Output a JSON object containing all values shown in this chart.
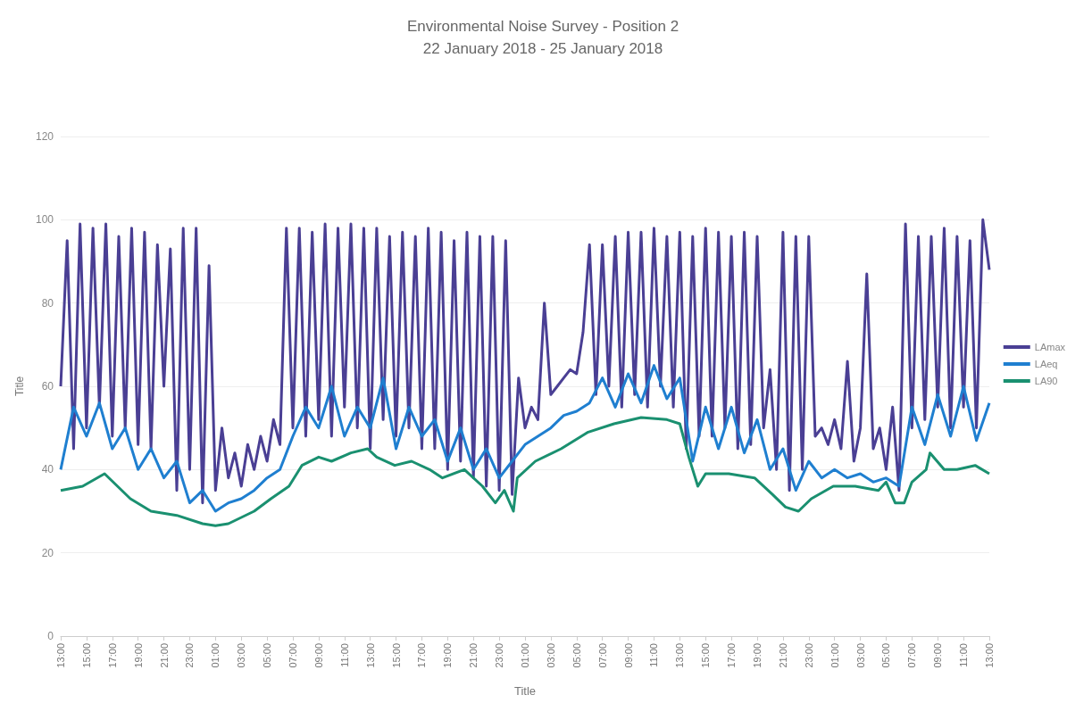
{
  "chart_data": {
    "type": "line",
    "title": "Environmental Noise Survey - Position 2",
    "subtitle": "22 January 2018 - 25 January 2018",
    "xlabel": "Title",
    "ylabel": "Title",
    "xlim": [
      "2018-01-22T13:00",
      "2018-01-25T13:00"
    ],
    "ylim": [
      0,
      120
    ],
    "yticks": [
      0,
      20,
      40,
      60,
      80,
      100,
      120
    ],
    "xticks": [
      {
        "value": "2018-01-22T13:00",
        "label": "13:00"
      },
      {
        "value": "2018-01-22T15:00",
        "label": "15:00"
      },
      {
        "value": "2018-01-22T17:00",
        "label": "17:00"
      },
      {
        "value": "2018-01-22T19:00",
        "label": "19:00"
      },
      {
        "value": "2018-01-22T21:00",
        "label": "21:00"
      },
      {
        "value": "2018-01-22T23:00",
        "label": "23:00"
      },
      {
        "value": "2018-01-23T01:00",
        "label": "01:00"
      },
      {
        "value": "2018-01-23T03:00",
        "label": "03:00"
      },
      {
        "value": "2018-01-23T05:00",
        "label": "05:00"
      },
      {
        "value": "2018-01-23T07:00",
        "label": "07:00"
      },
      {
        "value": "2018-01-23T09:00",
        "label": "09:00"
      },
      {
        "value": "2018-01-23T11:00",
        "label": "11:00"
      },
      {
        "value": "2018-01-23T13:00",
        "label": "13:00"
      },
      {
        "value": "2018-01-23T15:00",
        "label": "15:00"
      },
      {
        "value": "2018-01-23T17:00",
        "label": "17:00"
      },
      {
        "value": "2018-01-23T19:00",
        "label": "19:00"
      },
      {
        "value": "2018-01-23T21:00",
        "label": "21:00"
      },
      {
        "value": "2018-01-23T23:00",
        "label": "23:00"
      },
      {
        "value": "2018-01-24T01:00",
        "label": "01:00"
      },
      {
        "value": "2018-01-24T03:00",
        "label": "03:00"
      },
      {
        "value": "2018-01-24T05:00",
        "label": "05:00"
      },
      {
        "value": "2018-01-24T07:00",
        "label": "07:00"
      },
      {
        "value": "2018-01-24T09:00",
        "label": "09:00"
      },
      {
        "value": "2018-01-24T11:00",
        "label": "11:00"
      },
      {
        "value": "2018-01-24T13:00",
        "label": "13:00"
      },
      {
        "value": "2018-01-24T15:00",
        "label": "15:00"
      },
      {
        "value": "2018-01-24T17:00",
        "label": "17:00"
      },
      {
        "value": "2018-01-24T19:00",
        "label": "19:00"
      },
      {
        "value": "2018-01-24T21:00",
        "label": "21:00"
      },
      {
        "value": "2018-01-24T23:00",
        "label": "23:00"
      },
      {
        "value": "2018-01-25T01:00",
        "label": "01:00"
      },
      {
        "value": "2018-01-25T03:00",
        "label": "03:00"
      },
      {
        "value": "2018-01-25T05:00",
        "label": "05:00"
      },
      {
        "value": "2018-01-25T07:00",
        "label": "07:00"
      },
      {
        "value": "2018-01-25T09:00",
        "label": "09:00"
      },
      {
        "value": "2018-01-25T11:00",
        "label": "11:00"
      },
      {
        "value": "2018-01-25T13:00",
        "label": "13:00"
      }
    ],
    "grid": "y",
    "legend": "right",
    "marker": "none",
    "line_style": "solid",
    "series": [
      {
        "name": "LAmax",
        "color": "#4a3f94",
        "x": [
          "2018-01-22T13:00",
          "2018-01-22T13:30",
          "2018-01-22T14:00",
          "2018-01-22T14:30",
          "2018-01-22T15:00",
          "2018-01-22T15:30",
          "2018-01-22T16:00",
          "2018-01-22T16:30",
          "2018-01-22T17:00",
          "2018-01-22T17:30",
          "2018-01-22T18:00",
          "2018-01-22T18:30",
          "2018-01-22T19:00",
          "2018-01-22T19:30",
          "2018-01-22T20:00",
          "2018-01-22T20:30",
          "2018-01-22T21:00",
          "2018-01-22T21:30",
          "2018-01-22T22:00",
          "2018-01-22T22:30",
          "2018-01-22T23:00",
          "2018-01-22T23:30",
          "2018-01-23T00:00",
          "2018-01-23T00:30",
          "2018-01-23T01:00",
          "2018-01-23T01:30",
          "2018-01-23T02:00",
          "2018-01-23T02:30",
          "2018-01-23T03:00",
          "2018-01-23T03:30",
          "2018-01-23T04:00",
          "2018-01-23T04:30",
          "2018-01-23T05:00",
          "2018-01-23T05:30",
          "2018-01-23T06:00",
          "2018-01-23T06:30",
          "2018-01-23T07:00",
          "2018-01-23T07:30",
          "2018-01-23T08:00",
          "2018-01-23T08:30",
          "2018-01-23T09:00",
          "2018-01-23T09:30",
          "2018-01-23T10:00",
          "2018-01-23T10:30",
          "2018-01-23T11:00",
          "2018-01-23T11:30",
          "2018-01-23T12:00",
          "2018-01-23T12:30",
          "2018-01-23T13:00",
          "2018-01-23T13:30",
          "2018-01-23T14:00",
          "2018-01-23T14:30",
          "2018-01-23T15:00",
          "2018-01-23T15:30",
          "2018-01-23T16:00",
          "2018-01-23T16:30",
          "2018-01-23T17:00",
          "2018-01-23T17:30",
          "2018-01-23T18:00",
          "2018-01-23T18:30",
          "2018-01-23T19:00",
          "2018-01-23T19:30",
          "2018-01-23T20:00",
          "2018-01-23T20:30",
          "2018-01-23T21:00",
          "2018-01-23T21:30",
          "2018-01-23T22:00",
          "2018-01-23T22:30",
          "2018-01-23T23:00",
          "2018-01-23T23:30",
          "2018-01-24T00:00",
          "2018-01-24T00:30",
          "2018-01-24T01:00",
          "2018-01-24T01:30",
          "2018-01-24T02:00",
          "2018-01-24T02:30",
          "2018-01-24T03:00",
          "2018-01-24T03:30",
          "2018-01-24T04:00",
          "2018-01-24T04:30",
          "2018-01-24T05:00",
          "2018-01-24T05:30",
          "2018-01-24T06:00",
          "2018-01-24T06:30",
          "2018-01-24T07:00",
          "2018-01-24T07:30",
          "2018-01-24T08:00",
          "2018-01-24T08:30",
          "2018-01-24T09:00",
          "2018-01-24T09:30",
          "2018-01-24T10:00",
          "2018-01-24T10:30",
          "2018-01-24T11:00",
          "2018-01-24T11:30",
          "2018-01-24T12:00",
          "2018-01-24T12:30",
          "2018-01-24T13:00",
          "2018-01-24T13:30",
          "2018-01-24T14:00",
          "2018-01-24T14:30",
          "2018-01-24T15:00",
          "2018-01-24T15:30",
          "2018-01-24T16:00",
          "2018-01-24T16:30",
          "2018-01-24T17:00",
          "2018-01-24T17:30",
          "2018-01-24T18:00",
          "2018-01-24T18:30",
          "2018-01-24T19:00",
          "2018-01-24T19:30",
          "2018-01-24T20:00",
          "2018-01-24T20:30",
          "2018-01-24T21:00",
          "2018-01-24T21:30",
          "2018-01-24T22:00",
          "2018-01-24T22:30",
          "2018-01-24T23:00",
          "2018-01-24T23:30",
          "2018-01-25T00:00",
          "2018-01-25T00:30",
          "2018-01-25T01:00",
          "2018-01-25T01:30",
          "2018-01-25T02:00",
          "2018-01-25T02:30",
          "2018-01-25T03:00",
          "2018-01-25T03:30",
          "2018-01-25T04:00",
          "2018-01-25T04:30",
          "2018-01-25T05:00",
          "2018-01-25T05:30",
          "2018-01-25T06:00",
          "2018-01-25T06:30",
          "2018-01-25T07:00",
          "2018-01-25T07:30",
          "2018-01-25T08:00",
          "2018-01-25T08:30",
          "2018-01-25T09:00",
          "2018-01-25T09:30",
          "2018-01-25T10:00",
          "2018-01-25T10:30",
          "2018-01-25T11:00",
          "2018-01-25T11:30",
          "2018-01-25T12:00",
          "2018-01-25T12:30",
          "2018-01-25T13:00"
        ],
        "values": [
          60,
          95,
          45,
          99,
          50,
          98,
          55,
          99,
          48,
          96,
          50,
          98,
          46,
          97,
          45,
          94,
          60,
          93,
          35,
          98,
          40,
          98,
          32,
          89,
          35,
          50,
          38,
          44,
          36,
          46,
          40,
          48,
          42,
          52,
          46,
          98,
          50,
          98,
          48,
          97,
          52,
          99,
          48,
          98,
          55,
          99,
          50,
          98,
          45,
          98,
          52,
          96,
          48,
          97,
          50,
          96,
          45,
          98,
          45,
          97,
          40,
          95,
          42,
          97,
          38,
          96,
          36,
          96,
          35,
          95,
          34,
          62,
          50,
          55,
          52,
          80,
          58,
          60,
          62,
          64,
          63,
          73,
          94,
          58,
          94,
          60,
          96,
          55,
          97,
          58,
          97,
          55,
          98,
          60,
          96,
          55,
          97,
          45,
          96,
          48,
          98,
          48,
          97,
          50,
          96,
          45,
          97,
          46,
          96,
          50,
          64,
          40,
          97,
          35,
          96,
          40,
          96,
          48,
          50,
          46,
          52,
          45,
          66,
          42,
          50,
          87,
          45,
          50,
          40,
          55,
          35,
          99,
          50,
          96,
          52,
          96,
          55,
          98,
          50,
          96,
          55,
          95,
          50,
          100,
          88
        ]
      },
      {
        "name": "LAeq",
        "color": "#1f7fd0",
        "x": [
          "2018-01-22T13:00",
          "2018-01-22T14:00",
          "2018-01-22T15:00",
          "2018-01-22T16:00",
          "2018-01-22T17:00",
          "2018-01-22T18:00",
          "2018-01-22T19:00",
          "2018-01-22T20:00",
          "2018-01-22T21:00",
          "2018-01-22T22:00",
          "2018-01-22T23:00",
          "2018-01-23T00:00",
          "2018-01-23T01:00",
          "2018-01-23T02:00",
          "2018-01-23T03:00",
          "2018-01-23T04:00",
          "2018-01-23T05:00",
          "2018-01-23T06:00",
          "2018-01-23T07:00",
          "2018-01-23T08:00",
          "2018-01-23T09:00",
          "2018-01-23T10:00",
          "2018-01-23T11:00",
          "2018-01-23T12:00",
          "2018-01-23T13:00",
          "2018-01-23T14:00",
          "2018-01-23T15:00",
          "2018-01-23T16:00",
          "2018-01-23T17:00",
          "2018-01-23T18:00",
          "2018-01-23T19:00",
          "2018-01-23T20:00",
          "2018-01-23T21:00",
          "2018-01-23T22:00",
          "2018-01-23T23:00",
          "2018-01-24T00:00",
          "2018-01-24T01:00",
          "2018-01-24T02:00",
          "2018-01-24T03:00",
          "2018-01-24T04:00",
          "2018-01-24T05:00",
          "2018-01-24T06:00",
          "2018-01-24T07:00",
          "2018-01-24T08:00",
          "2018-01-24T09:00",
          "2018-01-24T10:00",
          "2018-01-24T11:00",
          "2018-01-24T12:00",
          "2018-01-24T13:00",
          "2018-01-24T14:00",
          "2018-01-24T15:00",
          "2018-01-24T16:00",
          "2018-01-24T17:00",
          "2018-01-24T18:00",
          "2018-01-24T19:00",
          "2018-01-24T20:00",
          "2018-01-24T21:00",
          "2018-01-24T22:00",
          "2018-01-24T23:00",
          "2018-01-25T00:00",
          "2018-01-25T01:00",
          "2018-01-25T02:00",
          "2018-01-25T03:00",
          "2018-01-25T04:00",
          "2018-01-25T05:00",
          "2018-01-25T06:00",
          "2018-01-25T07:00",
          "2018-01-25T08:00",
          "2018-01-25T09:00",
          "2018-01-25T10:00",
          "2018-01-25T11:00",
          "2018-01-25T12:00",
          "2018-01-25T13:00"
        ],
        "values": [
          40,
          55,
          48,
          56,
          45,
          50,
          40,
          45,
          38,
          42,
          32,
          35,
          30,
          32,
          33,
          35,
          38,
          40,
          48,
          55,
          50,
          60,
          48,
          55,
          50,
          62,
          45,
          55,
          48,
          52,
          42,
          50,
          40,
          45,
          38,
          42,
          46,
          48,
          50,
          53,
          54,
          56,
          62,
          55,
          63,
          56,
          65,
          57,
          62,
          42,
          55,
          45,
          55,
          44,
          52,
          40,
          45,
          35,
          42,
          38,
          40,
          38,
          39,
          37,
          38,
          36,
          55,
          46,
          58,
          48,
          60,
          47,
          56
        ]
      },
      {
        "name": "LA90",
        "color": "#1a9070",
        "x": [
          "2018-01-22T13:00",
          "2018-01-22T14:42",
          "2018-01-22T16:24",
          "2018-01-22T18:24",
          "2018-01-22T20:00",
          "2018-01-22T22:00",
          "2018-01-23T00:00",
          "2018-01-23T01:00",
          "2018-01-23T02:00",
          "2018-01-23T04:00",
          "2018-01-23T05:18",
          "2018-01-23T06:42",
          "2018-01-23T07:42",
          "2018-01-23T09:00",
          "2018-01-23T10:00",
          "2018-01-23T11:30",
          "2018-01-23T12:48",
          "2018-01-23T13:30",
          "2018-01-23T14:54",
          "2018-01-23T16:12",
          "2018-01-23T17:36",
          "2018-01-23T18:36",
          "2018-01-23T20:18",
          "2018-01-23T21:42",
          "2018-01-23T22:42",
          "2018-01-23T23:24",
          "2018-01-24T00:06",
          "2018-01-24T00:24",
          "2018-01-24T01:48",
          "2018-01-24T03:48",
          "2018-01-24T05:54",
          "2018-01-24T07:54",
          "2018-01-24T10:00",
          "2018-01-24T12:00",
          "2018-01-24T13:00",
          "2018-01-24T13:42",
          "2018-01-24T14:24",
          "2018-01-24T15:00",
          "2018-01-24T16:48",
          "2018-01-24T18:48",
          "2018-01-24T20:12",
          "2018-01-24T21:12",
          "2018-01-24T22:12",
          "2018-01-24T23:12",
          "2018-01-25T00:54",
          "2018-01-25T02:36",
          "2018-01-25T04:24",
          "2018-01-25T05:00",
          "2018-01-25T05:42",
          "2018-01-25T06:24",
          "2018-01-25T07:00",
          "2018-01-25T08:06",
          "2018-01-25T08:24",
          "2018-01-25T09:30",
          "2018-01-25T10:30",
          "2018-01-25T11:54",
          "2018-01-25T13:00"
        ],
        "values": [
          35,
          36,
          39,
          33,
          30,
          29,
          27,
          26.5,
          27,
          30,
          33,
          36,
          41,
          43,
          42,
          44,
          45,
          43,
          41,
          42,
          40,
          38,
          40,
          36,
          32,
          35,
          30,
          38,
          42,
          45,
          49,
          51,
          52.5,
          52,
          51,
          43,
          36,
          39,
          39,
          38,
          34,
          31,
          30,
          33,
          36,
          36,
          35,
          37,
          32,
          32,
          37,
          40,
          44,
          40,
          40,
          41,
          39
        ]
      }
    ]
  }
}
